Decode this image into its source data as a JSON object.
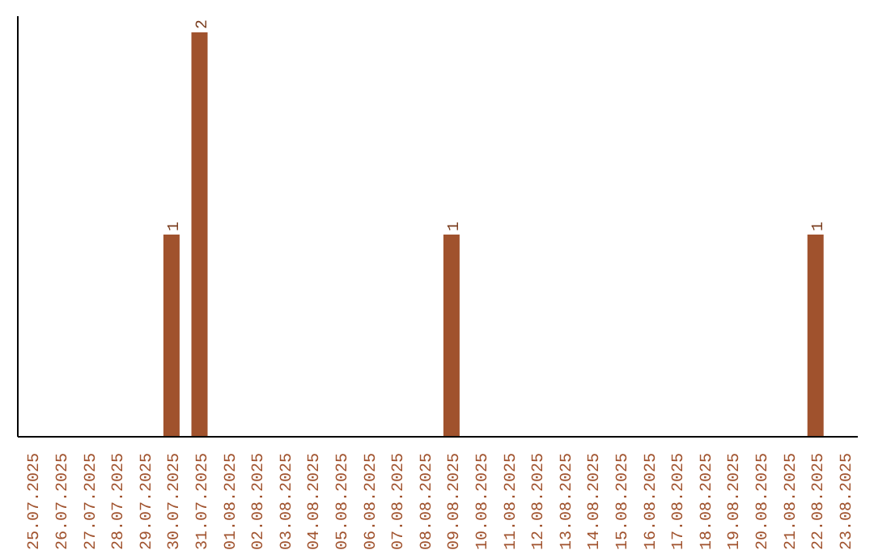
{
  "chart_data": {
    "type": "bar",
    "categories": [
      "25.07.2025",
      "26.07.2025",
      "27.07.2025",
      "28.07.2025",
      "29.07.2025",
      "30.07.2025",
      "31.07.2025",
      "01.08.2025",
      "02.08.2025",
      "03.08.2025",
      "04.08.2025",
      "05.08.2025",
      "06.08.2025",
      "07.08.2025",
      "08.08.2025",
      "09.08.2025",
      "10.08.2025",
      "11.08.2025",
      "12.08.2025",
      "13.08.2025",
      "14.08.2025",
      "15.08.2025",
      "16.08.2025",
      "17.08.2025",
      "18.08.2025",
      "19.08.2025",
      "20.08.2025",
      "21.08.2025",
      "22.08.2025",
      "23.08.2025"
    ],
    "values": [
      null,
      null,
      null,
      null,
      null,
      1,
      2,
      null,
      null,
      null,
      null,
      null,
      null,
      null,
      null,
      1,
      null,
      null,
      null,
      null,
      null,
      null,
      null,
      null,
      null,
      null,
      null,
      null,
      1,
      null
    ],
    "color": "#a0522d",
    "data_labels": true
  }
}
